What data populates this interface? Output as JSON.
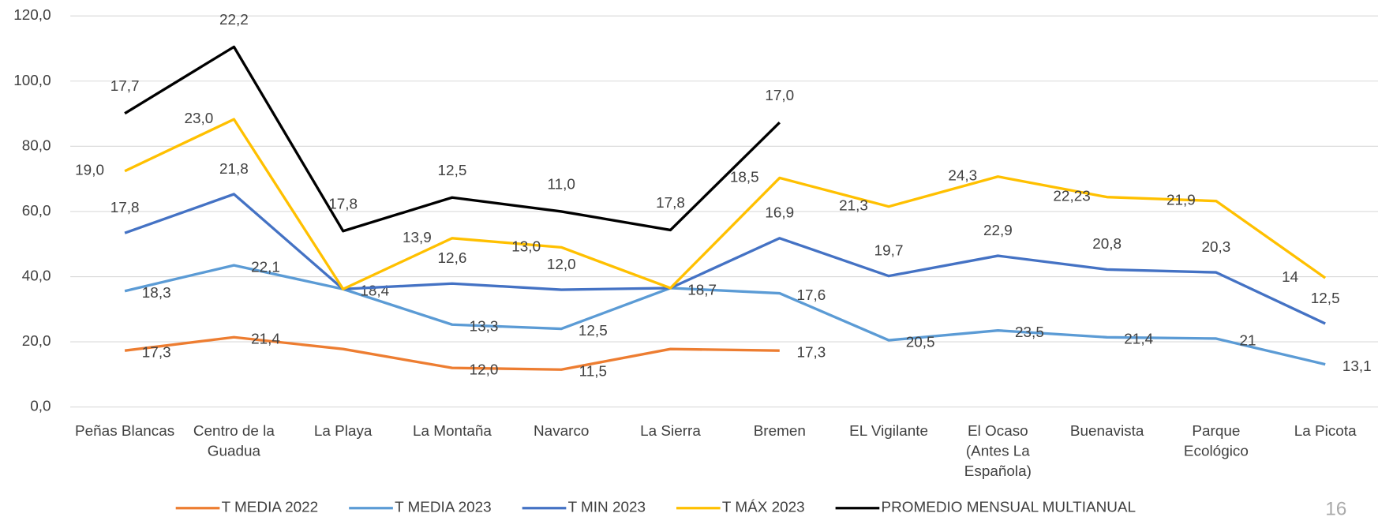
{
  "chart_data": {
    "type": "stacked_line",
    "categories": [
      "Peñas Blancas",
      "Centro de la Guadua",
      "La Playa",
      "La Montaña",
      "Navarco",
      "La Sierra",
      "Bremen",
      "EL Vigilante",
      "El Ocaso (Antes La Española)",
      "Buenavista",
      "Parque Ecológico",
      "La Picota"
    ],
    "series": [
      {
        "name": "T MEDIA 2022",
        "color": "#ED7D31",
        "values": [
          17.3,
          21.4,
          17.8,
          12.0,
          11.5,
          17.8,
          17.3,
          null,
          null,
          null,
          null,
          null
        ],
        "value_labels": [
          "17,3",
          "21,4",
          null,
          "12,0",
          "11,5",
          null,
          "17,3",
          null,
          null,
          null,
          null,
          null
        ]
      },
      {
        "name": "T MEDIA 2023",
        "color": "#5B9BD5",
        "values": [
          18.3,
          22.1,
          18.4,
          13.3,
          12.5,
          18.7,
          17.6,
          20.5,
          23.5,
          21.4,
          21,
          13.1
        ],
        "value_labels": [
          "18,3",
          "22,1",
          "18,4",
          "13,3",
          "12,5",
          "18,7",
          "17,6",
          "20,5",
          "23,5",
          "21,4",
          "21",
          "13,1"
        ]
      },
      {
        "name": "T MIN 2023",
        "color": "#4472C4",
        "values": [
          17.8,
          21.8,
          0,
          12.6,
          12.0,
          0,
          16.9,
          19.7,
          22.9,
          20.8,
          20.3,
          12.5
        ],
        "value_labels": [
          "17,8",
          "21,8",
          null,
          "12,6",
          "12,0",
          null,
          "16,9",
          "19,7",
          "22,9",
          "20,8",
          "20,3",
          "12,5"
        ]
      },
      {
        "name": "T MÁX 2023",
        "color": "#FFC000",
        "values": [
          19.0,
          23.0,
          0,
          13.9,
          13.0,
          0,
          18.5,
          21.3,
          24.3,
          22.23,
          21.9,
          14
        ],
        "value_labels": [
          "19,0",
          "23,0",
          null,
          "13,9",
          "13,0",
          null,
          "18,5",
          "21,3",
          "24,3",
          "22,23",
          "21,9",
          "14"
        ]
      },
      {
        "name": "PROMEDIO MENSUAL MULTIANUAL",
        "color": "#000000",
        "values": [
          17.7,
          22.2,
          17.8,
          12.5,
          11.0,
          17.8,
          17.0,
          null,
          null,
          null,
          null,
          null
        ],
        "value_labels": [
          "17,7",
          "22,2",
          "17,8",
          "12,5",
          "11,0",
          "17,8",
          "17,0",
          null,
          null,
          null,
          null,
          null
        ]
      }
    ],
    "ylim": [
      0,
      120
    ],
    "yticks": [
      {
        "value": 0,
        "label": "0,0"
      },
      {
        "value": 20,
        "label": "20,0"
      },
      {
        "value": 40,
        "label": "40,0"
      },
      {
        "value": 60,
        "label": "60,0"
      },
      {
        "value": 80,
        "label": "80,0"
      },
      {
        "value": 100,
        "label": "100,0"
      },
      {
        "value": 120,
        "label": "120,0"
      }
    ],
    "grid": true,
    "legend": "bottom"
  },
  "page_number": "16"
}
